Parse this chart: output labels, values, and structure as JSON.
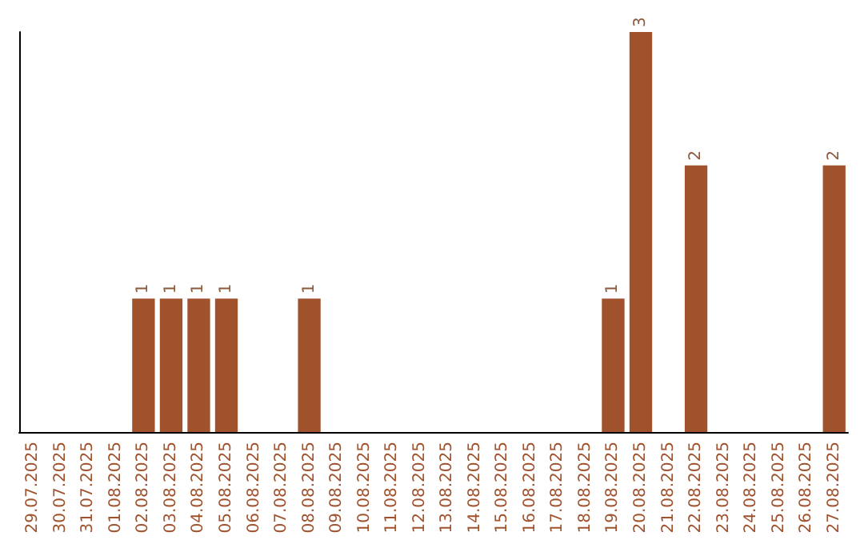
{
  "chart_data": {
    "type": "bar",
    "categories": [
      "29.07.2025",
      "30.07.2025",
      "31.07.2025",
      "01.08.2025",
      "02.08.2025",
      "03.08.2025",
      "04.08.2025",
      "05.08.2025",
      "06.08.2025",
      "07.08.2025",
      "08.08.2025",
      "09.08.2025",
      "10.08.2025",
      "11.08.2025",
      "12.08.2025",
      "13.08.2025",
      "14.08.2025",
      "15.08.2025",
      "16.08.2025",
      "17.08.2025",
      "18.08.2025",
      "19.08.2025",
      "20.08.2025",
      "21.08.2025",
      "22.08.2025",
      "23.08.2025",
      "24.08.2025",
      "25.08.2025",
      "26.08.2025",
      "27.08.2025"
    ],
    "values": [
      0,
      0,
      0,
      0,
      1,
      1,
      1,
      1,
      0,
      0,
      1,
      0,
      0,
      0,
      0,
      0,
      0,
      0,
      0,
      0,
      0,
      1,
      3,
      0,
      2,
      0,
      0,
      0,
      0,
      2
    ],
    "value_labels": [
      null,
      null,
      null,
      null,
      "1",
      "1",
      "1",
      "1",
      null,
      null,
      "1",
      null,
      null,
      null,
      null,
      null,
      null,
      null,
      null,
      null,
      null,
      "1",
      "3",
      null,
      "2",
      null,
      null,
      null,
      null,
      "2"
    ],
    "color": "#a0522d"
  }
}
